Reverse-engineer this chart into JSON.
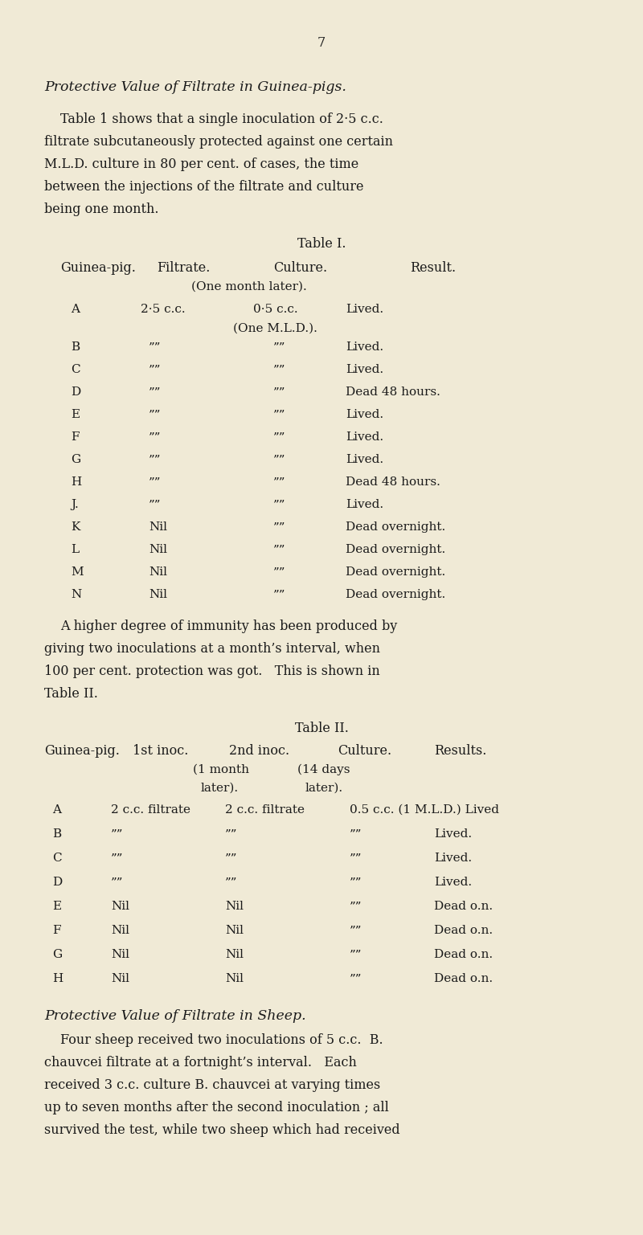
{
  "bg_color": "#f0ead6",
  "text_color": "#1a1a1a",
  "page_number": "7",
  "section_title": "Protective Value of Filtrate in Guinea-pigs.",
  "para1": "Table 1 shows that a single inoculation of 2·5 c.c.\nfiltrate subcutaneously protected against one certain\nM.L.D. culture in 80 per cent. of cases, the time\nbetween the injections of the filtrate and culture\nbeing one month.",
  "table1_title": "Table I.",
  "table1_header": [
    "Guinea-pig.",
    "Filtrate.",
    "Culture.",
    "Result."
  ],
  "table1_subheader": "(One month later).",
  "table1_row_A_extra": "(One M.L.D.).",
  "table1_rows": [
    [
      "A",
      "2·5 c.c.",
      "0·5 c.c.   Lived."
    ],
    [
      "B",
      "””",
      "””",
      "Lived."
    ],
    [
      "C",
      "””",
      "””",
      "Lived."
    ],
    [
      "D",
      "””",
      "””",
      "Dead 48 hours."
    ],
    [
      "E",
      "””",
      "””",
      "Lived."
    ],
    [
      "F",
      "””",
      "””",
      "Lived."
    ],
    [
      "G",
      "””",
      "””",
      "Lived."
    ],
    [
      "H",
      "””",
      "””",
      "Dead 48 hours."
    ],
    [
      "J.",
      "””",
      "””",
      "Lived."
    ],
    [
      "K",
      "Nil",
      "””",
      "Dead overnight."
    ],
    [
      "L",
      "Nil",
      "””",
      "Dead overnight."
    ],
    [
      "M",
      "Nil",
      "””",
      "Dead overnight."
    ],
    [
      "N",
      "Nil",
      "””",
      "Dead overnight."
    ]
  ],
  "para2": "A higher degree of immunity has been produced by\ngiving two inoculations at a month’s interval, when\n100 per cent. protection was got.   This is shown in\nTable II.",
  "table2_title": "Table II.",
  "table2_header": [
    "Guinea-pig.",
    "1st inoc.",
    "2nd inoc.",
    "Culture.",
    "Results."
  ],
  "table2_subheader1": "(1 month    (14 days",
  "table2_subheader2": "later).       later).",
  "table2_rows": [
    [
      "A",
      "2 c.c. filtrate",
      "2 c.c. filtrate",
      "0.5 c.c. (1 M.L.D.) Lived"
    ],
    [
      "B",
      "””",
      "””",
      "””",
      "Lived."
    ],
    [
      "C",
      "””",
      "””",
      "””",
      "Lived."
    ],
    [
      "D",
      "””",
      "””",
      "””",
      "Lived."
    ],
    [
      "E",
      "Nil",
      "Nil",
      "””",
      "Dead o.n."
    ],
    [
      "F",
      "Nil",
      "Nil",
      "””",
      "Dead o.n."
    ],
    [
      "G",
      "Nil",
      "Nil",
      "””",
      "Dead o.n."
    ],
    [
      "H",
      "Nil",
      "Nil",
      "””",
      "Dead o.n."
    ]
  ],
  "section2_title": "Protective Value of Filtrate in Sheep.",
  "para3": "Four sheep received two inoculations of 5 c.c. B.\nchauvcei filtrate at a fortnight’s interval.   Each\nreceived 3 c.c. culture B. chauvcei at varying times\nup to seven months after the second inoculation ; all\nsurvived the test, while two sheep which had received"
}
